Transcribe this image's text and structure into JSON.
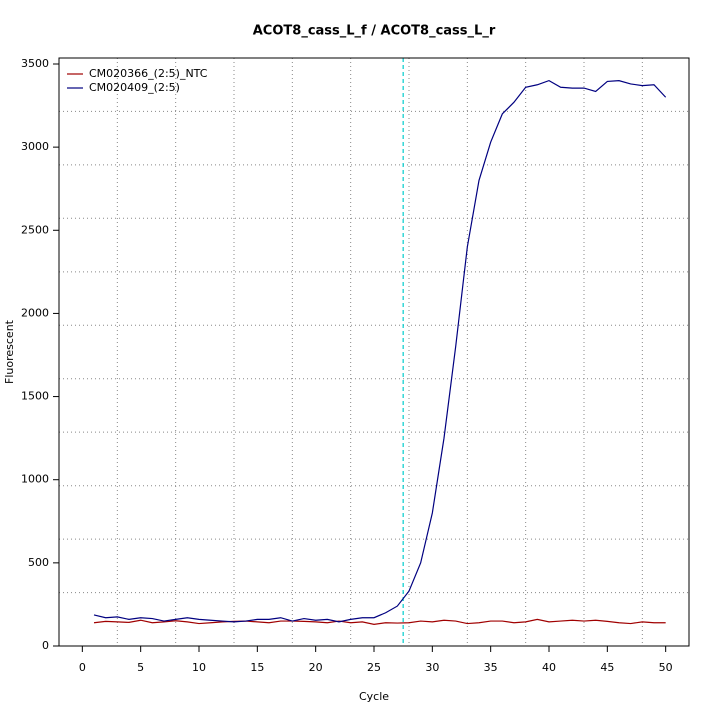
{
  "chart_data": {
    "type": "line",
    "title": "ACOT8_cass_L_f / ACOT8_cass_L_r",
    "x_label": "Cycle",
    "y_label": "Fluorescent",
    "x": [
      1,
      2,
      3,
      4,
      5,
      6,
      7,
      8,
      9,
      10,
      11,
      12,
      13,
      14,
      15,
      16,
      17,
      18,
      19,
      20,
      21,
      22,
      23,
      24,
      25,
      26,
      27,
      28,
      29,
      30,
      31,
      32,
      33,
      34,
      35,
      36,
      37,
      38,
      39,
      40,
      41,
      42,
      43,
      44,
      45,
      46,
      47,
      48,
      49,
      50
    ],
    "series": [
      {
        "name": "CM020366_(2:5)_NTC",
        "color": "#a00000",
        "values": [
          140,
          148,
          145,
          142,
          155,
          140,
          145,
          152,
          145,
          135,
          140,
          145,
          148,
          150,
          145,
          140,
          150,
          150,
          148,
          145,
          140,
          150,
          140,
          145,
          130,
          140,
          138,
          140,
          150,
          145,
          155,
          150,
          135,
          140,
          150,
          150,
          140,
          145,
          160,
          145,
          150,
          155,
          150,
          155,
          148,
          140,
          135,
          145,
          140,
          140
        ]
      },
      {
        "name": "CM020409_(2:5)",
        "color": "#000080",
        "values": [
          187,
          170,
          175,
          160,
          170,
          165,
          150,
          160,
          170,
          160,
          155,
          150,
          145,
          150,
          160,
          160,
          170,
          150,
          165,
          155,
          160,
          145,
          160,
          170,
          170,
          200,
          240,
          330,
          500,
          800,
          1250,
          1800,
          2400,
          2800,
          3030,
          3200,
          3270,
          3360,
          3375,
          3400,
          3360,
          3355,
          3355,
          3335,
          3395,
          3400,
          3380,
          3370,
          3375,
          3300
        ]
      }
    ],
    "threshold": 27.5,
    "threshold_color": "#00cdcd",
    "xlim": [
      -2,
      52
    ],
    "ylim": [
      0,
      3536
    ],
    "xticks": [
      0,
      5,
      10,
      15,
      20,
      25,
      30,
      35,
      40,
      45,
      50
    ],
    "yticks": [
      0,
      500,
      1000,
      1500,
      2000,
      2500,
      3000,
      3500
    ],
    "xgrid": [
      3,
      8,
      13,
      18,
      23,
      28,
      33,
      38,
      43,
      48
    ],
    "ygrid": [
      321,
      643,
      964,
      1286,
      1607,
      1929,
      2250,
      2572,
      2893,
      3215
    ],
    "legend": "top-left"
  }
}
